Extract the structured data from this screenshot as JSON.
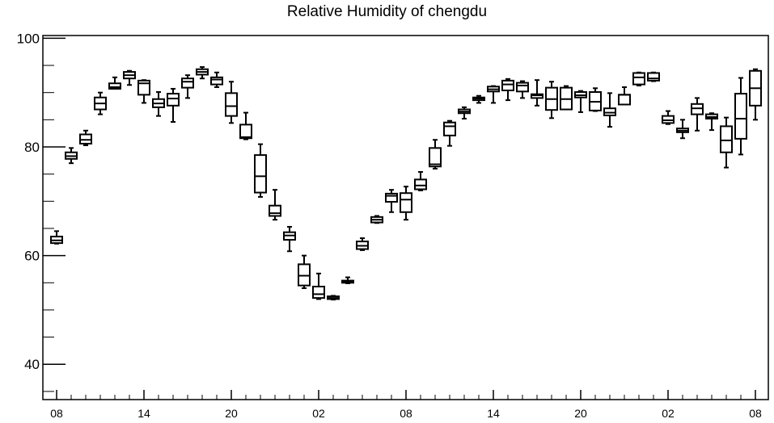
{
  "chart_data": {
    "type": "box",
    "title": "Relative Humidity of chengdu",
    "xlabel": "",
    "ylabel": "",
    "ylim": [
      33.5,
      100.5
    ],
    "y_ticks": [
      40,
      60,
      80,
      100
    ],
    "grid": false,
    "legend": "none",
    "x_tick_labels": [
      {
        "pos": 0,
        "label": "08"
      },
      {
        "pos": 6,
        "label": "14"
      },
      {
        "pos": 12,
        "label": "20"
      },
      {
        "pos": 18,
        "label": "02"
      },
      {
        "pos": 24,
        "label": "08"
      },
      {
        "pos": 30,
        "label": "14"
      },
      {
        "pos": 36,
        "label": "20"
      },
      {
        "pos": 42,
        "label": "02"
      },
      {
        "pos": 48,
        "label": "08"
      }
    ],
    "boxes": [
      {
        "x": 0,
        "min": 62.2,
        "q1": 62.3,
        "median": 62.8,
        "q3": 63.5,
        "max": 64.5
      },
      {
        "x": 1,
        "min": 77.0,
        "q1": 77.8,
        "median": 78.3,
        "q3": 79.0,
        "max": 79.8
      },
      {
        "x": 2,
        "min": 80.3,
        "q1": 80.6,
        "median": 81.3,
        "q3": 82.3,
        "max": 83.0
      },
      {
        "x": 3,
        "min": 86.0,
        "q1": 86.9,
        "median": 88.0,
        "q3": 89.1,
        "max": 90.0
      },
      {
        "x": 4,
        "min": 90.7,
        "q1": 90.7,
        "median": 91.0,
        "q3": 91.7,
        "max": 92.8
      },
      {
        "x": 5,
        "min": 91.4,
        "q1": 92.6,
        "median": 93.2,
        "q3": 93.8,
        "max": 94.0
      },
      {
        "x": 6,
        "min": 88.1,
        "q1": 89.6,
        "median": 91.7,
        "q3": 92.2,
        "max": 92.3
      },
      {
        "x": 7,
        "min": 85.7,
        "q1": 87.3,
        "median": 88.0,
        "q3": 88.8,
        "max": 90.1
      },
      {
        "x": 8,
        "min": 84.6,
        "q1": 87.6,
        "median": 88.9,
        "q3": 89.8,
        "max": 90.7
      },
      {
        "x": 9,
        "min": 89.0,
        "q1": 90.9,
        "median": 92.0,
        "q3": 92.6,
        "max": 93.2
      },
      {
        "x": 10,
        "min": 92.6,
        "q1": 93.3,
        "median": 93.8,
        "q3": 94.3,
        "max": 94.7
      },
      {
        "x": 11,
        "min": 91.0,
        "q1": 91.5,
        "median": 92.4,
        "q3": 92.8,
        "max": 93.7
      },
      {
        "x": 12,
        "min": 84.4,
        "q1": 85.7,
        "median": 87.5,
        "q3": 89.9,
        "max": 92.0
      },
      {
        "x": 13,
        "min": 81.4,
        "q1": 81.6,
        "median": 81.8,
        "q3": 84.1,
        "max": 86.3
      },
      {
        "x": 14,
        "min": 70.8,
        "q1": 71.6,
        "median": 74.6,
        "q3": 78.5,
        "max": 80.5
      },
      {
        "x": 15,
        "min": 66.6,
        "q1": 67.3,
        "median": 67.8,
        "q3": 69.2,
        "max": 72.1
      },
      {
        "x": 16,
        "min": 60.8,
        "q1": 62.9,
        "median": 63.7,
        "q3": 64.3,
        "max": 65.3
      },
      {
        "x": 17,
        "min": 54.0,
        "q1": 54.5,
        "median": 56.3,
        "q3": 58.4,
        "max": 60.0
      },
      {
        "x": 18,
        "min": 52.0,
        "q1": 52.2,
        "median": 52.9,
        "q3": 54.3,
        "max": 56.7
      },
      {
        "x": 19,
        "min": 51.9,
        "q1": 52.0,
        "median": 52.2,
        "q3": 52.5,
        "max": 52.6
      },
      {
        "x": 20,
        "min": 54.9,
        "q1": 55.0,
        "median": 55.2,
        "q3": 55.4,
        "max": 56.0
      },
      {
        "x": 21,
        "min": 61.0,
        "q1": 61.2,
        "median": 61.8,
        "q3": 62.6,
        "max": 63.2
      },
      {
        "x": 22,
        "min": 66.0,
        "q1": 66.1,
        "median": 66.6,
        "q3": 67.1,
        "max": 67.3
      },
      {
        "x": 23,
        "min": 68.0,
        "q1": 69.9,
        "median": 71.0,
        "q3": 71.4,
        "max": 72.1
      },
      {
        "x": 24,
        "min": 66.6,
        "q1": 68.0,
        "median": 70.3,
        "q3": 71.5,
        "max": 72.7
      },
      {
        "x": 25,
        "min": 72.0,
        "q1": 72.2,
        "median": 72.9,
        "q3": 74.0,
        "max": 75.4
      },
      {
        "x": 26,
        "min": 76.0,
        "q1": 76.4,
        "median": 76.8,
        "q3": 79.8,
        "max": 81.3
      },
      {
        "x": 27,
        "min": 80.2,
        "q1": 82.1,
        "median": 83.8,
        "q3": 84.5,
        "max": 84.8
      },
      {
        "x": 28,
        "min": 85.2,
        "q1": 86.2,
        "median": 86.5,
        "q3": 86.9,
        "max": 87.3
      },
      {
        "x": 29,
        "min": 88.1,
        "q1": 88.6,
        "median": 88.9,
        "q3": 89.1,
        "max": 89.4
      },
      {
        "x": 30,
        "min": 88.1,
        "q1": 90.2,
        "median": 90.6,
        "q3": 91.1,
        "max": 91.2
      },
      {
        "x": 31,
        "min": 88.6,
        "q1": 90.4,
        "median": 91.5,
        "q3": 92.2,
        "max": 92.5
      },
      {
        "x": 32,
        "min": 89.0,
        "q1": 90.2,
        "median": 91.3,
        "q3": 91.8,
        "max": 92.1
      },
      {
        "x": 33,
        "min": 87.6,
        "q1": 89.0,
        "median": 89.5,
        "q3": 89.7,
        "max": 92.3
      },
      {
        "x": 34,
        "min": 85.3,
        "q1": 86.8,
        "median": 88.8,
        "q3": 90.9,
        "max": 92.0
      },
      {
        "x": 35,
        "min": 86.9,
        "q1": 86.9,
        "median": 88.8,
        "q3": 90.9,
        "max": 91.2
      },
      {
        "x": 36,
        "min": 86.4,
        "q1": 89.1,
        "median": 89.5,
        "q3": 90.1,
        "max": 90.3
      },
      {
        "x": 37,
        "min": 86.6,
        "q1": 86.7,
        "median": 88.3,
        "q3": 90.1,
        "max": 90.8
      },
      {
        "x": 38,
        "min": 83.7,
        "q1": 85.8,
        "median": 86.3,
        "q3": 87.1,
        "max": 89.9
      },
      {
        "x": 39,
        "min": 87.8,
        "q1": 87.8,
        "median": 89.6,
        "q3": 89.6,
        "max": 91.0
      },
      {
        "x": 40,
        "min": 91.3,
        "q1": 91.5,
        "median": 92.8,
        "q3": 93.6,
        "max": 93.7
      },
      {
        "x": 41,
        "min": 92.1,
        "q1": 92.2,
        "median": 92.6,
        "q3": 93.6,
        "max": 93.7
      },
      {
        "x": 42,
        "min": 84.2,
        "q1": 84.4,
        "median": 84.9,
        "q3": 85.7,
        "max": 86.6
      },
      {
        "x": 43,
        "min": 81.6,
        "q1": 82.7,
        "median": 83.0,
        "q3": 83.4,
        "max": 85.0
      },
      {
        "x": 44,
        "min": 83.0,
        "q1": 86.0,
        "median": 87.1,
        "q3": 87.9,
        "max": 89.0
      },
      {
        "x": 45,
        "min": 83.1,
        "q1": 85.2,
        "median": 85.5,
        "q3": 86.0,
        "max": 86.2
      },
      {
        "x": 46,
        "min": 76.2,
        "q1": 79.0,
        "median": 81.2,
        "q3": 83.8,
        "max": 85.4
      },
      {
        "x": 47,
        "min": 78.6,
        "q1": 81.5,
        "median": 85.2,
        "q3": 89.8,
        "max": 92.7
      },
      {
        "x": 48,
        "min": 85.0,
        "q1": 87.6,
        "median": 90.8,
        "q3": 94.0,
        "max": 94.3
      }
    ]
  }
}
